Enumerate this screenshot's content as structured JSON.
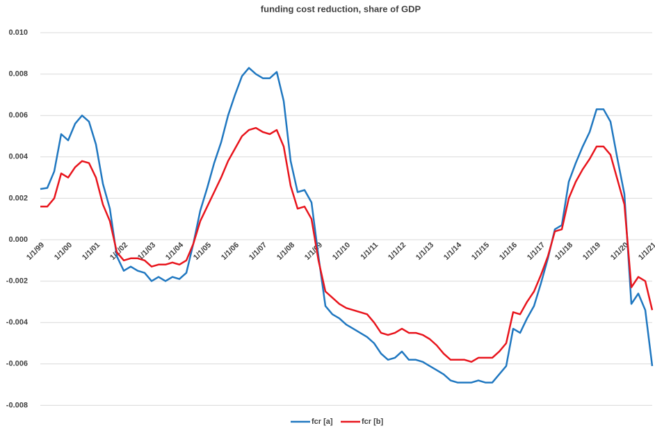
{
  "chart_data": {
    "type": "line",
    "title": "funding cost reduction, share of GDP",
    "categories": [
      "1/1/99",
      null,
      null,
      null,
      "1/1/00",
      null,
      null,
      null,
      "1/1/01",
      null,
      null,
      null,
      "1/1/02",
      null,
      null,
      null,
      "1/1/03",
      null,
      null,
      null,
      "1/1/04",
      null,
      null,
      null,
      "1/1/05",
      null,
      null,
      null,
      "1/1/06",
      null,
      null,
      null,
      "1/1/07",
      null,
      null,
      null,
      "1/1/08",
      null,
      null,
      null,
      "1/1/09",
      null,
      null,
      null,
      "1/1/10",
      null,
      null,
      null,
      "1/1/11",
      null,
      null,
      null,
      "1/1/12",
      null,
      null,
      null,
      "1/1/13",
      null,
      null,
      null,
      "1/1/14",
      null,
      null,
      null,
      "1/1/15",
      null,
      null,
      null,
      "1/1/16",
      null,
      null,
      null,
      "1/1/17",
      null,
      null,
      null,
      "1/1/18",
      null,
      null,
      null,
      "1/1/19",
      null,
      null,
      null,
      "1/1/20",
      null,
      null,
      null,
      "1/1/21"
    ],
    "series": [
      {
        "name": "fcr [a]",
        "color": "#1f77c0",
        "values": [
          0.00245,
          0.0025,
          0.0033,
          0.0051,
          0.0048,
          0.0056,
          0.006,
          0.0057,
          0.0046,
          0.0027,
          0.0015,
          -0.0008,
          -0.0015,
          -0.0013,
          -0.0015,
          -0.0016,
          -0.002,
          -0.0018,
          -0.002,
          -0.0018,
          -0.0019,
          -0.0016,
          -0.0002,
          0.0014,
          0.0025,
          0.0037,
          0.0047,
          0.006,
          0.007,
          0.0079,
          0.0083,
          0.008,
          0.0078,
          0.0078,
          0.0081,
          0.0067,
          0.0038,
          0.0023,
          0.0024,
          0.0018,
          -0.0008,
          -0.0032,
          -0.0036,
          -0.0038,
          -0.0041,
          -0.0043,
          -0.0045,
          -0.0047,
          -0.005,
          -0.0055,
          -0.0058,
          -0.0057,
          -0.0054,
          -0.0058,
          -0.0058,
          -0.0059,
          -0.0061,
          -0.0063,
          -0.0065,
          -0.0068,
          -0.0069,
          -0.0069,
          -0.0069,
          -0.0068,
          -0.0069,
          -0.0069,
          -0.0065,
          -0.0061,
          -0.0043,
          -0.0045,
          -0.0038,
          -0.0032,
          -0.0021,
          -0.0009,
          0.0005,
          0.0007,
          0.0028,
          0.0037,
          0.0045,
          0.0052,
          0.0063,
          0.0063,
          0.0057,
          0.0039,
          0.0022,
          -0.0031,
          -0.0026,
          -0.0034,
          -0.0061
        ]
      },
      {
        "name": "fcr [b]",
        "color": "#e8141c",
        "values": [
          0.0016,
          0.0016,
          0.002,
          0.0032,
          0.003,
          0.0035,
          0.0038,
          0.0037,
          0.003,
          0.0017,
          0.0009,
          -0.0006,
          -0.001,
          -0.0009,
          -0.0009,
          -0.001,
          -0.0013,
          -0.0012,
          -0.0012,
          -0.0011,
          -0.0012,
          -0.001,
          -0.0002,
          0.0009,
          0.0016,
          0.0023,
          0.003,
          0.0038,
          0.0044,
          0.005,
          0.0053,
          0.0054,
          0.0052,
          0.0051,
          0.0053,
          0.0045,
          0.0026,
          0.0015,
          0.0016,
          0.001,
          -0.001,
          -0.0025,
          -0.0028,
          -0.0031,
          -0.0033,
          -0.0034,
          -0.0035,
          -0.0036,
          -0.004,
          -0.0045,
          -0.0046,
          -0.0045,
          -0.0043,
          -0.0045,
          -0.0045,
          -0.0046,
          -0.0048,
          -0.0051,
          -0.0055,
          -0.0058,
          -0.0058,
          -0.0058,
          -0.0059,
          -0.0057,
          -0.0057,
          -0.0057,
          -0.0054,
          -0.005,
          -0.0035,
          -0.0036,
          -0.003,
          -0.0025,
          -0.0017,
          -0.0008,
          0.0004,
          0.0005,
          0.002,
          0.0028,
          0.0034,
          0.0039,
          0.0045,
          0.0045,
          0.0041,
          0.0029,
          0.0017,
          -0.0023,
          -0.0018,
          -0.002,
          -0.0034
        ]
      }
    ],
    "ylim": [
      -0.009,
      0.01
    ],
    "yticks": [
      {
        "value": -0.008,
        "label": "-0.008"
      },
      {
        "value": -0.006,
        "label": "-0.006"
      },
      {
        "value": -0.004,
        "label": "-0.004"
      },
      {
        "value": -0.002,
        "label": "-0.002"
      },
      {
        "value": 0,
        "label": "0.000"
      },
      {
        "value": 0.002,
        "label": "0.002"
      },
      {
        "value": 0.004,
        "label": "0.004"
      },
      {
        "value": 0.006,
        "label": "0.006"
      },
      {
        "value": 0.008,
        "label": "0.008"
      },
      {
        "value": 0.01,
        "label": "0.010"
      }
    ],
    "grid": true,
    "legend": "bottom"
  }
}
